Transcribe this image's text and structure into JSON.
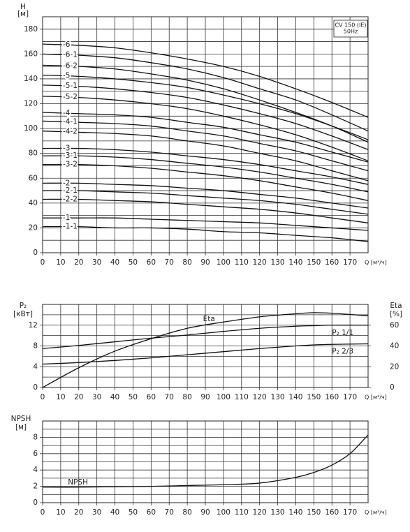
{
  "chart_data": [
    {
      "type": "line",
      "ylabel": "H",
      "yunit": "[м]",
      "xlabel": "Q [м³/ч]",
      "annotation": [
        "CV 150 (IE)",
        "50Hz"
      ],
      "xlim": [
        0,
        180
      ],
      "xticks": [
        0,
        10,
        20,
        30,
        40,
        50,
        60,
        70,
        80,
        90,
        100,
        110,
        120,
        130,
        140,
        150,
        160,
        170
      ],
      "ylim": [
        0,
        190
      ],
      "yticks": [
        0,
        20,
        40,
        60,
        80,
        100,
        120,
        140,
        160,
        180
      ],
      "ygrid_minor": [
        10,
        30,
        50,
        70,
        90,
        110,
        130,
        150,
        170
      ],
      "grid": true,
      "x": [
        0,
        20,
        40,
        60,
        80,
        100,
        120,
        140,
        160,
        180
      ],
      "series": [
        {
          "name": "-6",
          "color": "#111111",
          "values": [
            168,
            167,
            165,
            161,
            156,
            150,
            142,
            132,
            121,
            109
          ]
        },
        {
          "name": "-6-1",
          "color": "#111111",
          "values": [
            160,
            159,
            157,
            153,
            148,
            141,
            132,
            123,
            111,
            98
          ]
        },
        {
          "name": "-6-2",
          "color": "#111111",
          "values": [
            151,
            150,
            148,
            144,
            139,
            132,
            123,
            113,
            102,
            89
          ]
        },
        {
          "name": "-5",
          "color": "#111111",
          "values": [
            143,
            142,
            140,
            137,
            133,
            127,
            120,
            112,
            102,
            91
          ]
        },
        {
          "name": "-5-1",
          "color": "#111111",
          "values": [
            135,
            134,
            132,
            129,
            125,
            119,
            112,
            104,
            94,
            83
          ]
        },
        {
          "name": "-5-2",
          "color": "#111111",
          "values": [
            126,
            125,
            123,
            120,
            116,
            110,
            103,
            95,
            85,
            74
          ]
        },
        {
          "name": "-4",
          "color": "#111111",
          "values": [
            113,
            112,
            111,
            109,
            105,
            101,
            95,
            89,
            81,
            73
          ]
        },
        {
          "name": "-4-1",
          "color": "#111111",
          "values": [
            106,
            105,
            104,
            102,
            98,
            94,
            88,
            82,
            74,
            66
          ]
        },
        {
          "name": "-4-2",
          "color": "#111111",
          "values": [
            98,
            97,
            96,
            94,
            90,
            86,
            80,
            74,
            66,
            58
          ]
        },
        {
          "name": "-3",
          "color": "#111111",
          "values": [
            84,
            84,
            83,
            81,
            78,
            75,
            71,
            66,
            61,
            55
          ]
        },
        {
          "name": "-3-1",
          "color": "#111111",
          "values": [
            78,
            78,
            77,
            75,
            72,
            69,
            65,
            60,
            55,
            49
          ]
        },
        {
          "name": "-3-2",
          "color": "#111111",
          "values": [
            71,
            71,
            70,
            68,
            65,
            62,
            58,
            53,
            48,
            42
          ]
        },
        {
          "name": "-2",
          "color": "#111111",
          "values": [
            56,
            56,
            55,
            54,
            52,
            50,
            47,
            44,
            40,
            36
          ]
        },
        {
          "name": "-2-1",
          "color": "#111111",
          "values": [
            50,
            50,
            49,
            48,
            46,
            44,
            42,
            39,
            35,
            31
          ]
        },
        {
          "name": "-2-2",
          "color": "#111111",
          "values": [
            43,
            43,
            42,
            41,
            39,
            37,
            35,
            32,
            28,
            24
          ]
        },
        {
          "name": "-1",
          "color": "#111111",
          "values": [
            28,
            28,
            28,
            27,
            26,
            25,
            24,
            22,
            20,
            18
          ]
        },
        {
          "name": "-1-1",
          "color": "#111111",
          "values": [
            21,
            21,
            20,
            20,
            19,
            17,
            16,
            14,
            12,
            9
          ]
        }
      ]
    },
    {
      "type": "line",
      "ylabel": "P₂",
      "yunit": "[кВт]",
      "y2label": "Eta",
      "y2unit": "[%]",
      "xlabel": "Q [м³/ч]",
      "xlim": [
        0,
        180
      ],
      "xticks": [
        0,
        10,
        20,
        30,
        40,
        50,
        60,
        70,
        80,
        90,
        100,
        110,
        120,
        130,
        140,
        150,
        160,
        170
      ],
      "ylim": [
        0,
        16
      ],
      "yticks": [
        0,
        4,
        8,
        12
      ],
      "ygrid_minor": [
        2,
        6,
        10,
        14
      ],
      "y2lim": [
        0,
        80
      ],
      "y2ticks": [
        0,
        20,
        40,
        60
      ],
      "grid": true,
      "x": [
        0,
        20,
        40,
        60,
        80,
        100,
        120,
        140,
        150,
        160,
        180
      ],
      "series": [
        {
          "name": "Eta",
          "color": "#111111",
          "axis": "y2",
          "values": [
            0,
            19,
            35,
            47,
            57,
            63,
            68,
            71,
            72,
            71.5,
            69
          ]
        },
        {
          "name": "P₂ 1/1",
          "color": "#111111",
          "values": [
            7.5,
            8.1,
            8.8,
            9.5,
            10.1,
            10.8,
            11.4,
            11.8,
            11.9,
            12,
            12
          ]
        },
        {
          "name": "P₂ 2/3",
          "color": "#111111",
          "values": [
            4.5,
            4.8,
            5.2,
            5.7,
            6.3,
            6.9,
            7.5,
            8,
            8.2,
            8.3,
            8.4
          ]
        }
      ]
    },
    {
      "type": "line",
      "ylabel": "NPSH",
      "yunit": "[м]",
      "xlabel": "Q [м³/ч]",
      "xlim": [
        0,
        180
      ],
      "xticks": [
        0,
        10,
        20,
        30,
        40,
        50,
        60,
        70,
        80,
        90,
        100,
        110,
        120,
        130,
        140,
        150,
        160,
        170
      ],
      "ylim": [
        0,
        10
      ],
      "yticks": [
        0,
        2,
        4,
        6,
        8
      ],
      "ygrid_minor": [
        1,
        3,
        5,
        7,
        9
      ],
      "grid": true,
      "x": [
        0,
        20,
        40,
        60,
        80,
        100,
        120,
        140,
        150,
        160,
        170,
        180
      ],
      "series": [
        {
          "name": "NPSH",
          "color": "#111111",
          "values": [
            1.9,
            1.9,
            1.95,
            2,
            2.1,
            2.2,
            2.4,
            3.1,
            3.7,
            4.6,
            6,
            8.3
          ]
        }
      ]
    }
  ]
}
